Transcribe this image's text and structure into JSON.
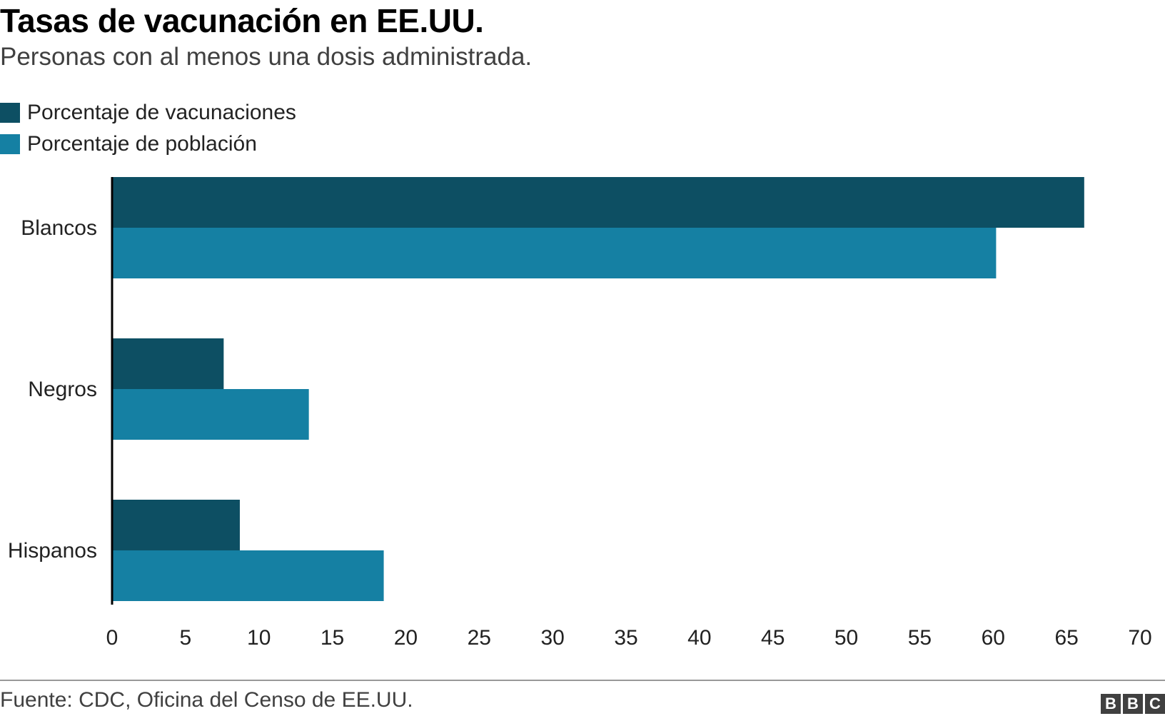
{
  "header": {
    "title": "Tasas de vacunación en EE.UU.",
    "subtitle": "Personas con al menos una dosis administrada."
  },
  "legend": [
    {
      "label": "Porcentaje de vacunaciones",
      "color": "#0d4f63"
    },
    {
      "label": "Porcentaje de población",
      "color": "#1580a3"
    }
  ],
  "chart_data": {
    "type": "bar",
    "orientation": "horizontal",
    "categories": [
      "Blancos",
      "Negros",
      "Hispanos"
    ],
    "series": [
      {
        "name": "Porcentaje de vacunaciones",
        "values": [
          66.2,
          7.6,
          8.7
        ],
        "color": "#0d4f63"
      },
      {
        "name": "Porcentaje de población",
        "values": [
          60.2,
          13.4,
          18.5
        ],
        "color": "#1580a3"
      }
    ],
    "xlim": [
      0,
      70
    ],
    "xticks": [
      0,
      5,
      10,
      15,
      20,
      25,
      30,
      35,
      40,
      45,
      50,
      55,
      60,
      65,
      70
    ],
    "grid": false,
    "legend_position": "top-left"
  },
  "footer": {
    "source": "Fuente: CDC, Oficina del Censo de EE.UU.",
    "logo": [
      "B",
      "B",
      "C"
    ]
  }
}
